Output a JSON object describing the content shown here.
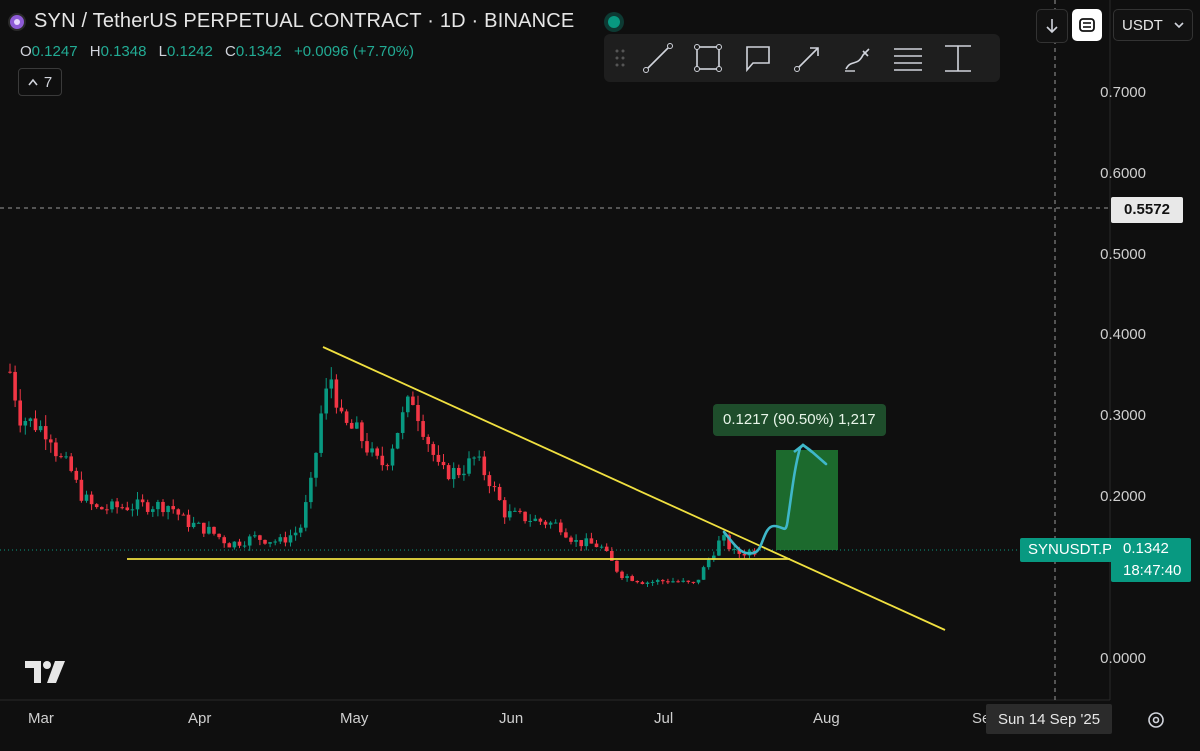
{
  "header": {
    "title": "SYN / TetherUS PERPETUAL CONTRACT · 1D · BINANCE",
    "ohlc": [
      {
        "k": "O",
        "v": "0.1247"
      },
      {
        "k": "H",
        "v": "0.1348"
      },
      {
        "k": "L",
        "v": "0.1242"
      },
      {
        "k": "C",
        "v": "0.1342"
      }
    ],
    "change": "+0.0096 (+7.70%)",
    "indicators_count": "7"
  },
  "top_right": {
    "currency": "USDT"
  },
  "toolbar": {
    "tools": [
      "trendline-icon",
      "rectangle-icon",
      "callout-icon",
      "arrow-icon",
      "brush-icon",
      "fib-icon",
      "measure-icon"
    ]
  },
  "price_axis": {
    "labels": [
      "0.7000",
      "0.6000",
      "0.5000",
      "0.4000",
      "0.3000",
      "0.2000",
      "0.0000"
    ],
    "crosshair_price": "0.5572",
    "current_symbol": "SYNUSDT.P",
    "current_price": "0.1342",
    "countdown": "18:47:40"
  },
  "time_axis": {
    "labels": [
      "Mar",
      "Apr",
      "May",
      "Jun",
      "Jul",
      "Aug",
      "Se"
    ],
    "crosshair_date": "Sun 14 Sep '25"
  },
  "annotation": {
    "target_label": "0.1217 (90.50%) 1,217"
  },
  "colors": {
    "up": "#089981",
    "down": "#f23645",
    "trendline": "#f0e040",
    "projection": "#3fb7c9",
    "target_box": "#1f7a32"
  },
  "chart_data": {
    "type": "candlestick",
    "ylim": [
      0,
      0.7
    ],
    "projection_target": 0.2559,
    "support": 0.122
  }
}
